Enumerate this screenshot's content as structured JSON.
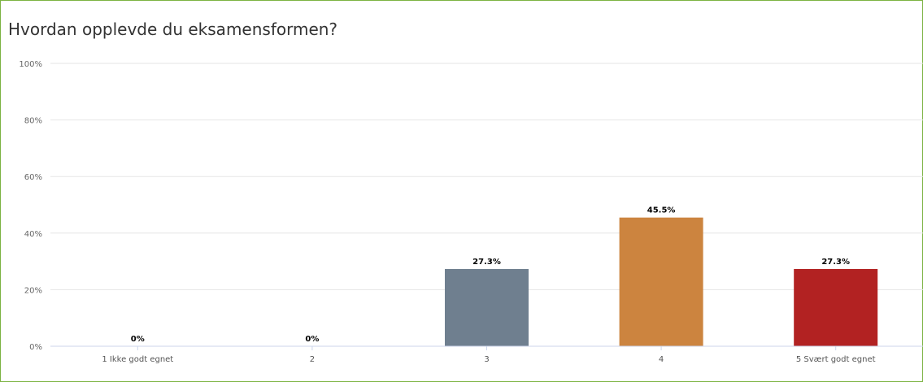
{
  "page": {
    "border_color": "#7cb342"
  },
  "chart_data": {
    "type": "bar",
    "title": "Hvordan opplevde du eksamensformen?",
    "categories": [
      "1 Ikke godt egnet",
      "2",
      "3",
      "4",
      "5 Svært godt egnet"
    ],
    "values": [
      0,
      0,
      27.3,
      45.5,
      27.3
    ],
    "data_labels": [
      "0%",
      "0%",
      "27.3%",
      "45.5%",
      "27.3%"
    ],
    "colors": [
      "#6f7f8f",
      "#6f7f8f",
      "#6f7f8f",
      "#cc843f",
      "#b22222"
    ],
    "ylim": [
      0,
      100
    ],
    "yticks": [
      0,
      20,
      40,
      60,
      80,
      100
    ],
    "ytick_labels": [
      "0%",
      "20%",
      "40%",
      "60%",
      "80%",
      "100%"
    ],
    "xlabel": "",
    "ylabel": "",
    "grid": true,
    "legend": false
  }
}
